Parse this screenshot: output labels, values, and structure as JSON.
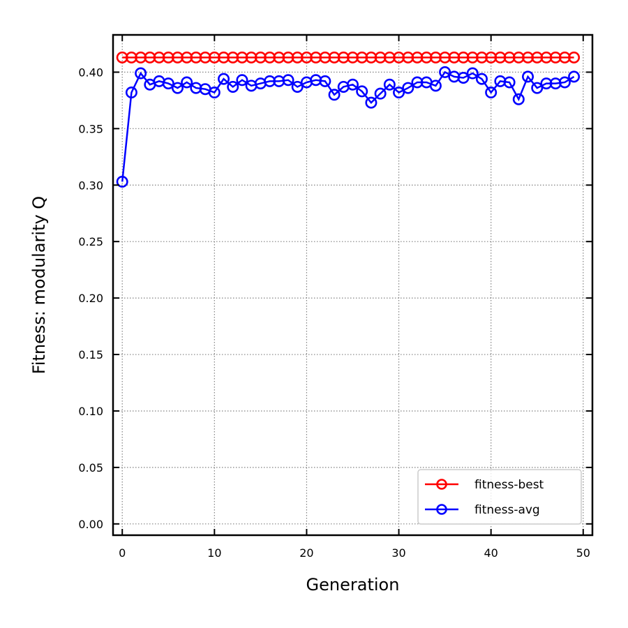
{
  "chart_data": {
    "type": "line",
    "title": "",
    "xlabel": "Generation",
    "ylabel": "Fitness: modularity Q",
    "xlim": [
      -1,
      51
    ],
    "ylim": [
      -0.01,
      0.433
    ],
    "xticks": [
      0,
      10,
      20,
      30,
      40,
      50
    ],
    "xtick_labels": [
      "0",
      "10",
      "20",
      "30",
      "40",
      "50"
    ],
    "yticks": [
      0.0,
      0.05,
      0.1,
      0.15,
      0.2,
      0.25,
      0.3,
      0.35,
      0.4
    ],
    "ytick_labels": [
      "0.00",
      "0.05",
      "0.10",
      "0.15",
      "0.20",
      "0.25",
      "0.30",
      "0.35",
      "0.40"
    ],
    "grid": true,
    "legend_position": "lower-right",
    "x": [
      0,
      1,
      2,
      3,
      4,
      5,
      6,
      7,
      8,
      9,
      10,
      11,
      12,
      13,
      14,
      15,
      16,
      17,
      18,
      19,
      20,
      21,
      22,
      23,
      24,
      25,
      26,
      27,
      28,
      29,
      30,
      31,
      32,
      33,
      34,
      35,
      36,
      37,
      38,
      39,
      40,
      41,
      42,
      43,
      44,
      45,
      46,
      47,
      48,
      49
    ],
    "series": [
      {
        "name": "fitness-best",
        "color": "#ff0000",
        "marker": "open-circle",
        "values": [
          0.413,
          0.413,
          0.413,
          0.413,
          0.413,
          0.413,
          0.413,
          0.413,
          0.413,
          0.413,
          0.413,
          0.413,
          0.413,
          0.413,
          0.413,
          0.413,
          0.413,
          0.413,
          0.413,
          0.413,
          0.413,
          0.413,
          0.413,
          0.413,
          0.413,
          0.413,
          0.413,
          0.413,
          0.413,
          0.413,
          0.413,
          0.413,
          0.413,
          0.413,
          0.413,
          0.413,
          0.413,
          0.413,
          0.413,
          0.413,
          0.413,
          0.413,
          0.413,
          0.413,
          0.413,
          0.413,
          0.413,
          0.413,
          0.413,
          0.413
        ]
      },
      {
        "name": "fitness-avg",
        "color": "#0000ff",
        "marker": "open-circle",
        "values": [
          0.303,
          0.382,
          0.399,
          0.389,
          0.392,
          0.39,
          0.386,
          0.391,
          0.386,
          0.385,
          0.382,
          0.394,
          0.387,
          0.393,
          0.388,
          0.39,
          0.392,
          0.392,
          0.393,
          0.387,
          0.391,
          0.393,
          0.392,
          0.38,
          0.387,
          0.389,
          0.383,
          0.373,
          0.381,
          0.389,
          0.382,
          0.386,
          0.391,
          0.391,
          0.388,
          0.4,
          0.396,
          0.395,
          0.399,
          0.394,
          0.382,
          0.392,
          0.391,
          0.376,
          0.396,
          0.386,
          0.39,
          0.39,
          0.391,
          0.396
        ]
      }
    ]
  }
}
